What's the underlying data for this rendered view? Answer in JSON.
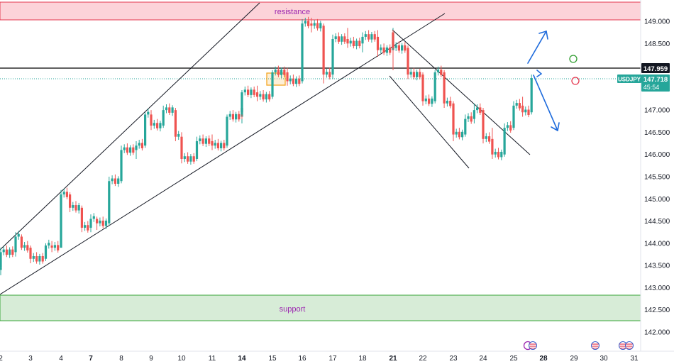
{
  "chart_data": {
    "type": "candlestick",
    "symbol": "USDJPY",
    "last_price": "147.718",
    "countdown": "45:54",
    "marked_level": "147.959",
    "y_axis": {
      "range": [
        141.85,
        149.55
      ],
      "ticks": [
        "149.000",
        "148.500",
        "148.000",
        "147.500",
        "147.000",
        "146.500",
        "146.000",
        "145.500",
        "145.000",
        "144.500",
        "144.000",
        "143.500",
        "143.000",
        "142.500",
        "142.000"
      ]
    },
    "x_axis": {
      "ticks": [
        "2",
        "3",
        "4",
        "7",
        "8",
        "9",
        "10",
        "11",
        "14",
        "15",
        "16",
        "17",
        "18",
        "21",
        "22",
        "23",
        "24",
        "25",
        "28",
        "29",
        "30",
        "31"
      ],
      "bold_ticks": [
        "7",
        "14",
        "21",
        "28"
      ]
    },
    "zones": [
      {
        "name": "resistance",
        "label": "resistance",
        "from": 149.03,
        "to": 149.45,
        "color": "#f8b9c2",
        "border": "#e53950"
      },
      {
        "name": "support",
        "label": "support",
        "from": 142.23,
        "to": 142.82,
        "color": "#cfe8cf",
        "border": "#4caf50"
      }
    ],
    "series": [
      {
        "points": [
          {
            "d": "2",
            "o": 143.4,
            "h": 143.55,
            "l": 143.28,
            "c": 143.45
          },
          {
            "d": "2",
            "o": 143.45,
            "h": 143.9,
            "l": 143.4,
            "c": 143.8
          },
          {
            "d": "2.5",
            "o": 143.8,
            "h": 144.25,
            "l": 143.7,
            "c": 144.15
          },
          {
            "d": "2.7",
            "o": 144.15,
            "h": 144.2,
            "l": 143.85,
            "c": 143.9
          },
          {
            "d": "3",
            "o": 143.9,
            "h": 143.95,
            "l": 143.55,
            "c": 143.65
          },
          {
            "d": "3.5",
            "o": 143.65,
            "h": 144.0,
            "l": 143.6,
            "c": 143.95
          },
          {
            "d": "3.7",
            "o": 143.95,
            "h": 144.05,
            "l": 143.8,
            "c": 143.9
          },
          {
            "d": "4",
            "o": 143.9,
            "h": 145.2,
            "l": 143.9,
            "c": 145.1
          },
          {
            "d": "4.3",
            "o": 145.1,
            "h": 145.15,
            "l": 144.7,
            "c": 144.8
          },
          {
            "d": "4.7",
            "o": 144.8,
            "h": 144.85,
            "l": 144.25,
            "c": 144.35
          },
          {
            "d": "7",
            "o": 144.35,
            "h": 144.65,
            "l": 144.25,
            "c": 144.55
          },
          {
            "d": "7.2",
            "o": 144.55,
            "h": 144.6,
            "l": 144.3,
            "c": 144.45
          },
          {
            "d": "7.6",
            "o": 144.45,
            "h": 145.5,
            "l": 144.4,
            "c": 145.4
          },
          {
            "d": "8",
            "o": 145.4,
            "h": 146.2,
            "l": 145.35,
            "c": 146.1
          },
          {
            "d": "8.5",
            "o": 146.1,
            "h": 146.3,
            "l": 145.9,
            "c": 146.2
          },
          {
            "d": "8.8",
            "o": 146.2,
            "h": 146.95,
            "l": 146.15,
            "c": 146.9
          },
          {
            "d": "9",
            "o": 146.9,
            "h": 147.0,
            "l": 146.55,
            "c": 146.65
          },
          {
            "d": "9.4",
            "o": 146.65,
            "h": 147.1,
            "l": 146.6,
            "c": 147.0
          },
          {
            "d": "9.8",
            "o": 147.0,
            "h": 147.05,
            "l": 146.3,
            "c": 146.4
          },
          {
            "d": "10",
            "o": 146.4,
            "h": 146.5,
            "l": 145.8,
            "c": 145.9
          },
          {
            "d": "10.5",
            "o": 145.9,
            "h": 146.4,
            "l": 145.85,
            "c": 146.3
          },
          {
            "d": "11",
            "o": 146.3,
            "h": 146.45,
            "l": 146.1,
            "c": 146.2
          },
          {
            "d": "11.5",
            "o": 146.2,
            "h": 146.9,
            "l": 146.15,
            "c": 146.85
          },
          {
            "d": "12",
            "o": 146.85,
            "h": 147.1,
            "l": 146.7,
            "c": 147.05
          },
          {
            "d": "13",
            "o": 147.05,
            "h": 147.2,
            "l": 146.8,
            "c": 146.95
          },
          {
            "d": "14",
            "o": 146.95,
            "h": 147.45,
            "l": 146.9,
            "c": 147.4
          },
          {
            "d": "14.5",
            "o": 147.4,
            "h": 147.55,
            "l": 147.2,
            "c": 147.3
          },
          {
            "d": "15",
            "o": 147.3,
            "h": 147.9,
            "l": 147.25,
            "c": 147.85
          },
          {
            "d": "15.5",
            "o": 147.85,
            "h": 147.95,
            "l": 147.55,
            "c": 147.65
          },
          {
            "d": "16",
            "o": 147.65,
            "h": 149.05,
            "l": 147.6,
            "c": 148.95
          },
          {
            "d": "16.3",
            "o": 148.95,
            "h": 149.08,
            "l": 148.75,
            "c": 148.9
          },
          {
            "d": "16.7",
            "o": 148.9,
            "h": 148.95,
            "l": 147.6,
            "c": 147.8
          },
          {
            "d": "17",
            "o": 147.8,
            "h": 148.7,
            "l": 147.7,
            "c": 148.6
          },
          {
            "d": "17.5",
            "o": 148.6,
            "h": 148.85,
            "l": 148.4,
            "c": 148.5
          },
          {
            "d": "18",
            "o": 148.5,
            "h": 148.75,
            "l": 148.3,
            "c": 148.65
          },
          {
            "d": "18.5",
            "o": 148.65,
            "h": 148.8,
            "l": 148.2,
            "c": 148.35
          },
          {
            "d": "19",
            "o": 148.35,
            "h": 148.85,
            "l": 148.3,
            "c": 148.75
          },
          {
            "d": "21",
            "o": 148.75,
            "h": 148.8,
            "l": 147.9,
            "c": 148.4
          },
          {
            "d": "21.5",
            "o": 148.4,
            "h": 148.45,
            "l": 147.7,
            "c": 147.8
          },
          {
            "d": "22",
            "o": 147.8,
            "h": 147.85,
            "l": 147.1,
            "c": 147.2
          },
          {
            "d": "22.4",
            "o": 147.2,
            "h": 147.9,
            "l": 147.15,
            "c": 147.85
          },
          {
            "d": "22.7",
            "o": 147.85,
            "h": 147.9,
            "l": 147.05,
            "c": 147.15
          },
          {
            "d": "23",
            "o": 147.15,
            "h": 147.2,
            "l": 146.3,
            "c": 146.45
          },
          {
            "d": "23.4",
            "o": 146.45,
            "h": 146.9,
            "l": 146.4,
            "c": 146.8
          },
          {
            "d": "23.7",
            "o": 146.8,
            "h": 147.15,
            "l": 146.7,
            "c": 147.0
          },
          {
            "d": "24",
            "o": 147.0,
            "h": 147.05,
            "l": 146.25,
            "c": 146.35
          },
          {
            "d": "24.3",
            "o": 146.35,
            "h": 146.6,
            "l": 145.9,
            "c": 146.0
          },
          {
            "d": "24.7",
            "o": 146.0,
            "h": 146.7,
            "l": 145.95,
            "c": 146.6
          },
          {
            "d": "25",
            "o": 146.6,
            "h": 147.2,
            "l": 146.55,
            "c": 147.1
          },
          {
            "d": "25.3",
            "o": 147.1,
            "h": 147.3,
            "l": 146.85,
            "c": 146.95
          },
          {
            "d": "25.6",
            "o": 146.95,
            "h": 147.8,
            "l": 146.9,
            "c": 147.72
          }
        ]
      }
    ],
    "grid": false,
    "labels": {
      "resistance": "resistance",
      "support": "support"
    }
  },
  "colors": {
    "bull": "#26a69a",
    "bear": "#ef5350",
    "marked_level_line": "#000000",
    "projection_arrows": "#1e6bdc",
    "price_badge": "#26a69a",
    "marked_badge": "#131722",
    "box": "#f5a623"
  },
  "icons": [
    "calendar-event-icon",
    "us-flag-icon",
    "target-up-icon",
    "target-down-icon"
  ]
}
